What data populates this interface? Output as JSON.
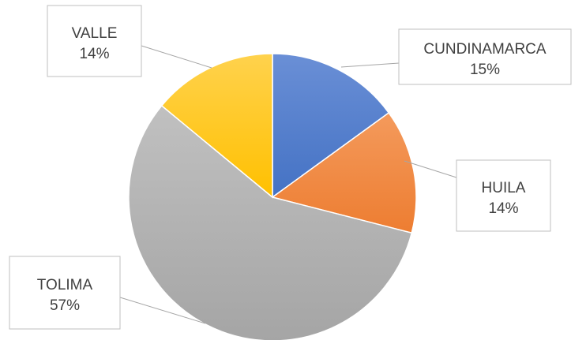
{
  "chart_data": {
    "type": "pie",
    "categories": [
      "CUNDINAMARCA",
      "HUILA",
      "TOLIMA",
      "VALLE"
    ],
    "values": [
      15,
      14,
      57,
      14
    ],
    "value_labels": [
      "15%",
      "14%",
      "57%",
      "14%"
    ],
    "colors": [
      "#4472c4",
      "#ed7d31",
      "#a5a5a5",
      "#ffc000"
    ],
    "colors_light": [
      "#6a8fd6",
      "#f49a5c",
      "#c0c0c0",
      "#ffd24d"
    ],
    "legend": "none",
    "data_labels": "callouts"
  }
}
